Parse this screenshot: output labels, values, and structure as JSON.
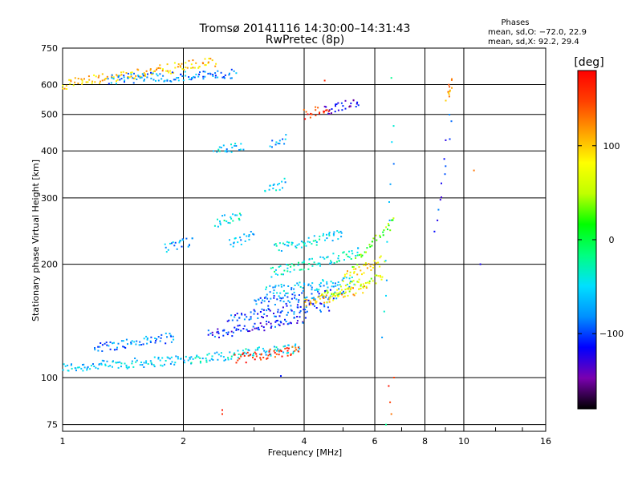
{
  "chart_data": {
    "type": "scatter",
    "title": "Tromsø 20141116 14:30:00–14:31:43",
    "subtitle": "RwPretec (8p)",
    "xlabel": "Frequency [MHz]",
    "ylabel": "Stationary phase Virtual Height [km]",
    "x_scale": "log",
    "y_scale": "log",
    "xlim": [
      1,
      16
    ],
    "ylim": [
      72,
      750
    ],
    "x_ticks": [
      1,
      2,
      4,
      6,
      8,
      10,
      16
    ],
    "x_tick_labels": [
      "1",
      "2",
      "4",
      "6",
      "8",
      "10",
      "16"
    ],
    "y_ticks": [
      75,
      100,
      200,
      300,
      400,
      500,
      600,
      750
    ],
    "y_tick_labels": [
      "75",
      "100",
      "200",
      "300",
      "400",
      "500",
      "600",
      "750"
    ],
    "grid": true,
    "stats": {
      "heading": "Phases",
      "line_o": "mean, sd,O: −72.0, 22.9",
      "line_x": "mean, sd,X:  92.2, 29.4"
    },
    "colorbar": {
      "label": "[deg]",
      "range": [
        -180,
        180
      ],
      "ticks": [
        100,
        0,
        -100
      ],
      "tick_labels": [
        "100",
        "0",
        "−100"
      ],
      "colors": [
        "#000000",
        "#7a00b0",
        "#0000ff",
        "#0090ff",
        "#00e0ff",
        "#00ff80",
        "#00ff00",
        "#c0ff00",
        "#ffff00",
        "#ffa000",
        "#ff4000",
        "#ff0000"
      ]
    },
    "traces": [
      {
        "f0": 1.0,
        "f1": 2.1,
        "h0": 106,
        "h1": 112,
        "phase": -60
      },
      {
        "f0": 2.1,
        "f1": 3.9,
        "h0": 112,
        "h1": 120,
        "phase": -50
      },
      {
        "f0": 2.7,
        "f1": 3.9,
        "h0": 112,
        "h1": 119,
        "phase": 150
      },
      {
        "f0": 1.2,
        "f1": 1.9,
        "h0": 120,
        "h1": 128,
        "phase": -80
      },
      {
        "f0": 2.3,
        "f1": 4.0,
        "h0": 130,
        "h1": 142,
        "phase": -110
      },
      {
        "f0": 2.6,
        "f1": 4.6,
        "h0": 145,
        "h1": 155,
        "phase": -100
      },
      {
        "f0": 3.0,
        "f1": 5.0,
        "h0": 158,
        "h1": 168,
        "phase": -90
      },
      {
        "f0": 3.2,
        "f1": 5.3,
        "h0": 170,
        "h1": 180,
        "phase": -60
      },
      {
        "f0": 4.0,
        "f1": 5.7,
        "h0": 158,
        "h1": 172,
        "phase": 100
      },
      {
        "f0": 4.4,
        "f1": 6.3,
        "h0": 165,
        "h1": 185,
        "phase": 60
      },
      {
        "f0": 3.3,
        "f1": 5.5,
        "h0": 190,
        "h1": 215,
        "phase": -40
      },
      {
        "f0": 3.4,
        "f1": 5.0,
        "h0": 220,
        "h1": 240,
        "phase": -50
      },
      {
        "f0": 5.3,
        "f1": 6.7,
        "h0": 200,
        "h1": 260,
        "phase": 30
      },
      {
        "f0": 5.0,
        "f1": 6.3,
        "h0": 185,
        "h1": 205,
        "phase": 90
      },
      {
        "f0": 1.8,
        "f1": 2.1,
        "h0": 220,
        "h1": 230,
        "phase": -70
      },
      {
        "f0": 2.6,
        "f1": 3.0,
        "h0": 225,
        "h1": 240,
        "phase": -70
      },
      {
        "f0": 2.4,
        "f1": 2.8,
        "h0": 258,
        "h1": 272,
        "phase": -40
      },
      {
        "f0": 3.2,
        "f1": 3.6,
        "h0": 310,
        "h1": 330,
        "phase": -60
      },
      {
        "f0": 3.3,
        "f1": 3.6,
        "h0": 420,
        "h1": 430,
        "phase": -70
      },
      {
        "f0": 2.4,
        "f1": 2.8,
        "h0": 400,
        "h1": 410,
        "phase": -60
      },
      {
        "f0": 4.0,
        "f1": 4.6,
        "h0": 500,
        "h1": 520,
        "phase": 160
      },
      {
        "f0": 4.5,
        "f1": 5.5,
        "h0": 510,
        "h1": 540,
        "phase": -130
      },
      {
        "f0": 1.0,
        "f1": 2.4,
        "h0": 600,
        "h1": 690,
        "phase": 100
      },
      {
        "f0": 1.3,
        "f1": 2.7,
        "h0": 620,
        "h1": 640,
        "phase": -80
      },
      {
        "f0": 6.3,
        "f1": 6.7,
        "h0": 130,
        "h1": 480,
        "phase": -60
      },
      {
        "f0": 8.5,
        "f1": 9.3,
        "h0": 240,
        "h1": 500,
        "phase": -110
      },
      {
        "f0": 9.1,
        "f1": 9.3,
        "h0": 560,
        "h1": 610,
        "phase": 120
      }
    ],
    "scatter_points": [
      {
        "x": 2.5,
        "y": 82,
        "phase": 170
      },
      {
        "x": 2.5,
        "y": 80,
        "phase": 160
      },
      {
        "x": 6.5,
        "y": 95,
        "phase": 170
      },
      {
        "x": 6.55,
        "y": 86,
        "phase": 150
      },
      {
        "x": 6.6,
        "y": 80,
        "phase": 130
      },
      {
        "x": 6.4,
        "y": 75,
        "phase": -20
      },
      {
        "x": 3.5,
        "y": 101,
        "phase": -110
      },
      {
        "x": 10.6,
        "y": 355,
        "phase": 130
      },
      {
        "x": 6.6,
        "y": 625,
        "phase": -20
      },
      {
        "x": 4.5,
        "y": 615,
        "phase": 160
      },
      {
        "x": 6.7,
        "y": 100,
        "phase": 150
      },
      {
        "x": 11.0,
        "y": 200,
        "phase": -120
      }
    ]
  }
}
